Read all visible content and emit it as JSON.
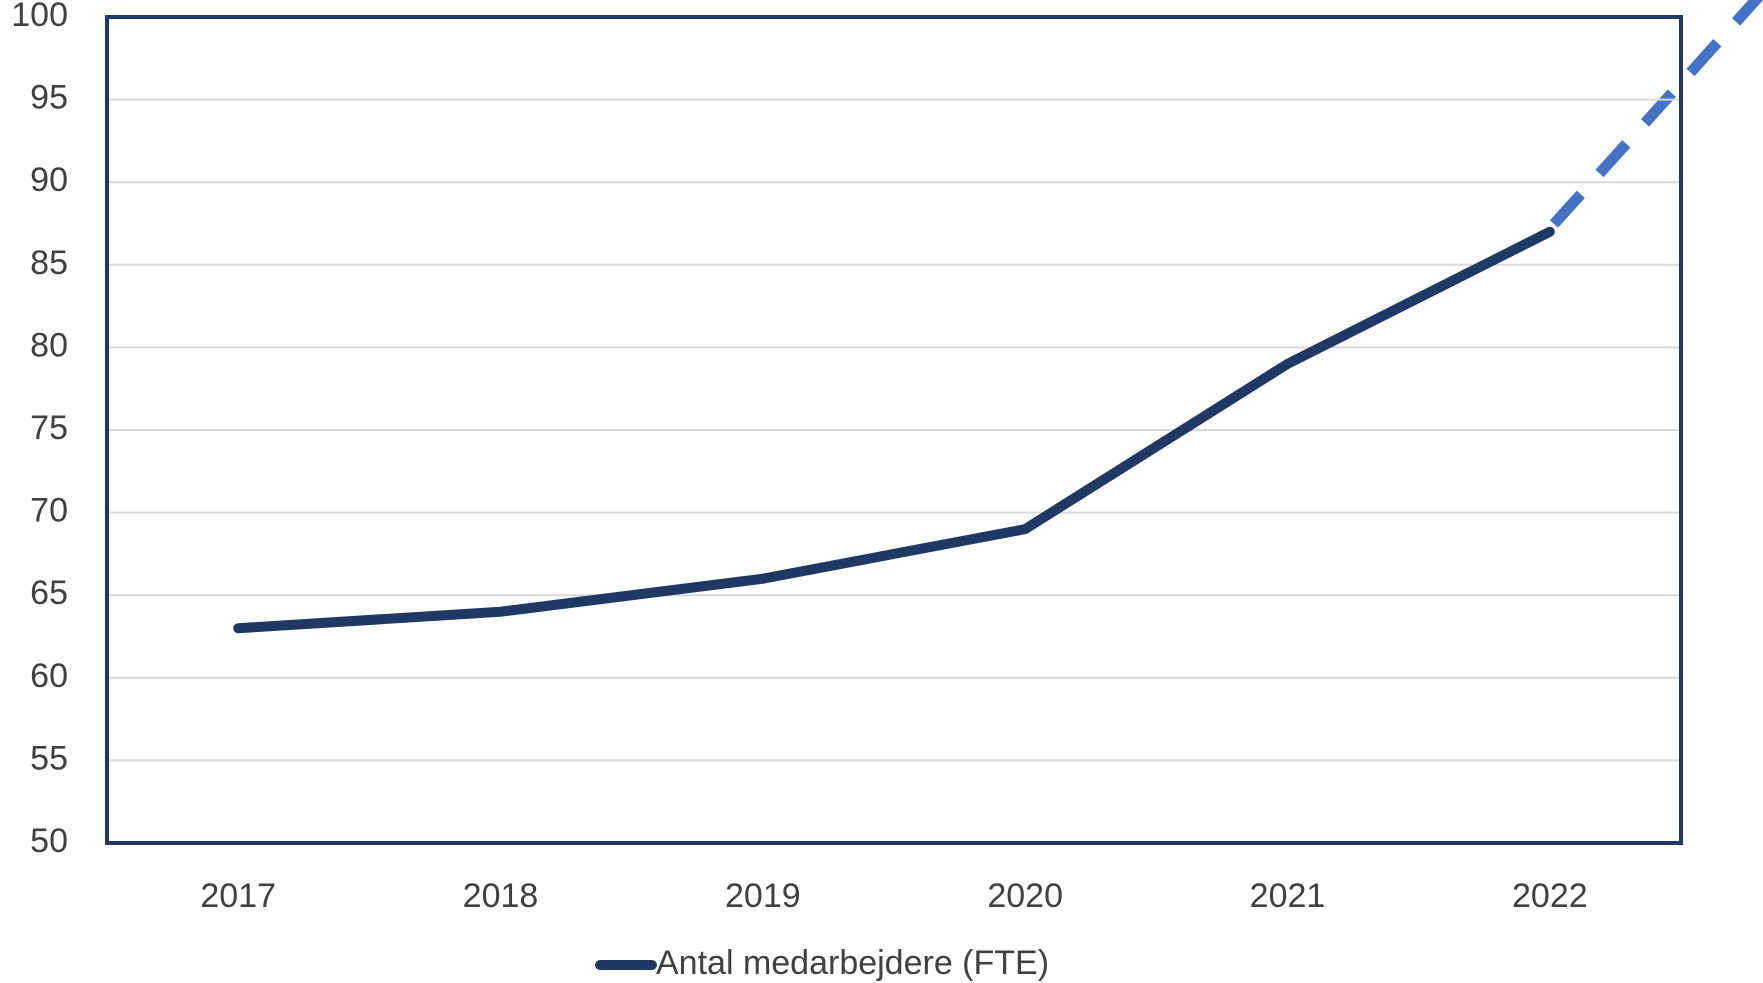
{
  "chart_data": {
    "type": "line",
    "categories": [
      "2017",
      "2018",
      "2019",
      "2020",
      "2021",
      "2022"
    ],
    "series": [
      {
        "name": "Antal medarbejdere (FTE)",
        "color": "#203864",
        "values": [
          63,
          64,
          66,
          69,
          79,
          87
        ]
      }
    ],
    "ylim": [
      50,
      100
    ],
    "yticks": [
      50,
      55,
      60,
      65,
      70,
      75,
      80,
      85,
      90,
      95,
      100
    ],
    "grid": true,
    "legend": "bottom"
  }
}
